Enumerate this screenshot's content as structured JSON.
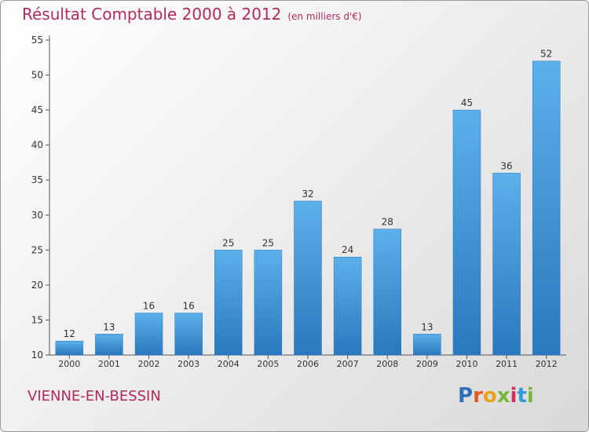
{
  "chart_data": {
    "type": "bar",
    "title": "Résultat Comptable 2000 à 2012",
    "subtitle": "(en milliers d'€)",
    "xlabel": "",
    "ylabel": "",
    "categories": [
      "2000",
      "2001",
      "2002",
      "2003",
      "2004",
      "2005",
      "2006",
      "2007",
      "2008",
      "2009",
      "2010",
      "2011",
      "2012"
    ],
    "values": [
      12,
      13,
      16,
      16,
      25,
      25,
      32,
      24,
      28,
      13,
      45,
      36,
      52
    ],
    "ylim": [
      10,
      55
    ],
    "yticks": [
      10,
      15,
      20,
      25,
      30,
      35,
      40,
      45,
      50,
      55
    ],
    "grid": false,
    "bar_color": "#3a8fd4"
  },
  "footer": {
    "place_name": "VIENNE-EN-BESSIN",
    "logo_text": "Proxiti",
    "logo_colors": [
      "#2e6fb7",
      "#e05a1e",
      "#e8a31b",
      "#7bb63a",
      "#d12f5b",
      "#2e9bd6",
      "#7bb63a"
    ]
  },
  "colors": {
    "title": "#b0295f",
    "axis": "#555555"
  }
}
